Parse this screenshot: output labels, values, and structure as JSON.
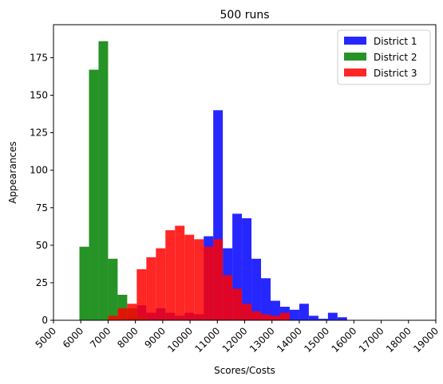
{
  "chart_data": {
    "type": "bar",
    "title": "500 runs",
    "xlabel": "Scores/Costs",
    "ylabel": "Appearances",
    "xlim": [
      5000,
      19000
    ],
    "ylim": [
      0,
      197
    ],
    "xticks": [
      5000,
      6000,
      7000,
      8000,
      9000,
      10000,
      11000,
      12000,
      13000,
      14000,
      15000,
      16000,
      17000,
      18000,
      19000
    ],
    "yticks": [
      0,
      25,
      50,
      75,
      100,
      125,
      150,
      175
    ],
    "legend_position": "top-right",
    "grid": false,
    "series": [
      {
        "name": "District 1",
        "color": "#0000ff",
        "alpha": 0.85,
        "bins": [
          [
            7700,
            8050,
            2
          ],
          [
            8050,
            8400,
            10
          ],
          [
            8400,
            8750,
            5
          ],
          [
            8750,
            9100,
            8
          ],
          [
            9100,
            9450,
            5
          ],
          [
            9450,
            9800,
            3
          ],
          [
            9800,
            10150,
            5
          ],
          [
            10150,
            10500,
            4
          ],
          [
            10500,
            10850,
            56
          ],
          [
            10850,
            11200,
            140
          ],
          [
            11200,
            11550,
            48
          ],
          [
            11550,
            11900,
            71
          ],
          [
            11900,
            12250,
            68
          ],
          [
            12250,
            12600,
            41
          ],
          [
            12600,
            12950,
            28
          ],
          [
            12950,
            13300,
            13
          ],
          [
            13300,
            13650,
            9
          ],
          [
            13650,
            14000,
            7
          ],
          [
            14000,
            14350,
            11
          ],
          [
            14350,
            14700,
            3
          ],
          [
            14700,
            15050,
            1
          ],
          [
            15050,
            15400,
            5
          ],
          [
            15400,
            15750,
            2
          ]
        ]
      },
      {
        "name": "District 2",
        "color": "#008000",
        "alpha": 0.85,
        "bins": [
          [
            5950,
            6300,
            49
          ],
          [
            6300,
            6650,
            167
          ],
          [
            6650,
            7000,
            186
          ],
          [
            7000,
            7350,
            41
          ],
          [
            7350,
            7700,
            17
          ],
          [
            7700,
            8050,
            8
          ],
          [
            8050,
            8400,
            2
          ]
        ]
      },
      {
        "name": "District 3",
        "color": "#ff0000",
        "alpha": 0.85,
        "bins": [
          [
            7000,
            7350,
            3
          ],
          [
            7350,
            7700,
            8
          ],
          [
            7700,
            8050,
            11
          ],
          [
            8050,
            8400,
            34
          ],
          [
            8400,
            8750,
            42
          ],
          [
            8750,
            9100,
            48
          ],
          [
            9100,
            9450,
            60
          ],
          [
            9450,
            9800,
            63
          ],
          [
            9800,
            10150,
            57
          ],
          [
            10150,
            10500,
            54
          ],
          [
            10500,
            10850,
            49
          ],
          [
            10850,
            11200,
            54
          ],
          [
            11200,
            11550,
            30
          ],
          [
            11550,
            11900,
            21
          ],
          [
            11900,
            12250,
            11
          ],
          [
            12250,
            12600,
            6
          ],
          [
            12600,
            12950,
            4
          ],
          [
            12950,
            13300,
            3
          ],
          [
            13300,
            13650,
            5
          ]
        ]
      }
    ]
  }
}
